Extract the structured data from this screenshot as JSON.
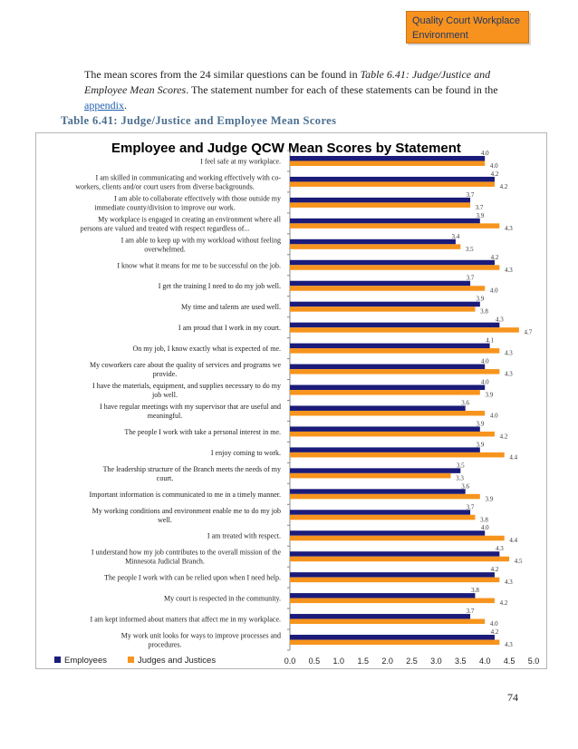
{
  "header": {
    "label": "Quality Court Workplace Environment"
  },
  "intro": {
    "part1": "The mean scores from the 24 similar questions can be found in ",
    "ref_italic": "Table 6.41: Judge/Justice and Employee Mean Scores",
    "part2": ". The statement number for each of these statements can be found in the ",
    "link": "appendix",
    "part3": "."
  },
  "table_caption": "Table 6.41: Judge/Justice and Employee Mean Scores",
  "page_number": "74",
  "colors": {
    "employees": "#1b1b7a",
    "judges": "#f7941d"
  },
  "chart_data": {
    "type": "bar",
    "orientation": "horizontal",
    "title": "Employee and Judge QCW Mean Scores by Statement",
    "xlim": [
      0,
      5.0
    ],
    "xticks": [
      "0.0",
      "0.5",
      "1.0",
      "1.5",
      "2.0",
      "2.5",
      "3.0",
      "3.5",
      "4.0",
      "4.5",
      "5.0"
    ],
    "legend_position": "bottom-left",
    "categories": [
      [
        "I feel safe at my workplace."
      ],
      [
        "I am skilled in communicating and working effectively with co-",
        "workers, clients and/or court users from diverse backgrounds."
      ],
      [
        "I am able to collaborate effectively with those outside my",
        "immediate county/division to improve our work."
      ],
      [
        "My workplace is engaged in creating an environment where all",
        "persons are valued and treated with respect regardless of..."
      ],
      [
        "I am able to keep up with my workload without feeling",
        "overwhelmed."
      ],
      [
        "I know what it means for me to be successful on the job."
      ],
      [
        "I get the training I need to do my job well."
      ],
      [
        "My time and talents are used well."
      ],
      [
        "I am proud that I work in my court."
      ],
      [
        "On my job, I know exactly what is expected of me."
      ],
      [
        "My coworkers care about the quality of services and programs we",
        "provide."
      ],
      [
        "I have the materials, equipment, and supplies necessary to do my",
        "job well."
      ],
      [
        "I have regular meetings with my supervisor that are useful and",
        "meaningful."
      ],
      [
        "The people I work with take a personal interest in me."
      ],
      [
        "I enjoy coming to work."
      ],
      [
        "The leadership structure of the Branch meets the needs of my",
        "court."
      ],
      [
        "Important information is communicated to me in a timely manner."
      ],
      [
        "My working conditions and environment enable me to do my job",
        "well."
      ],
      [
        "I am treated with respect."
      ],
      [
        "I understand how my job contributes to the overall mission of the",
        "Minnesota Judicial Branch."
      ],
      [
        "The people I work with can be relied upon when I need help."
      ],
      [
        "My court is respected in the community."
      ],
      [
        "I am kept informed about matters that affect me in my workplace."
      ],
      [
        "My work unit looks for ways to improve processes and",
        "procedures."
      ]
    ],
    "series": [
      {
        "name": "Employees",
        "values": [
          4.0,
          4.2,
          3.7,
          3.9,
          3.4,
          4.2,
          3.7,
          3.9,
          4.3,
          4.1,
          4.0,
          4.0,
          3.6,
          3.9,
          3.9,
          3.5,
          3.6,
          3.7,
          4.0,
          4.3,
          4.2,
          3.8,
          3.7,
          4.2
        ]
      },
      {
        "name": "Judges and Justices",
        "values": [
          4.0,
          4.2,
          3.7,
          4.3,
          3.5,
          4.3,
          4.0,
          3.8,
          4.7,
          4.3,
          4.3,
          3.9,
          4.0,
          4.2,
          4.4,
          3.3,
          3.9,
          3.8,
          4.4,
          4.5,
          4.3,
          4.2,
          4.0,
          4.3
        ]
      }
    ]
  }
}
